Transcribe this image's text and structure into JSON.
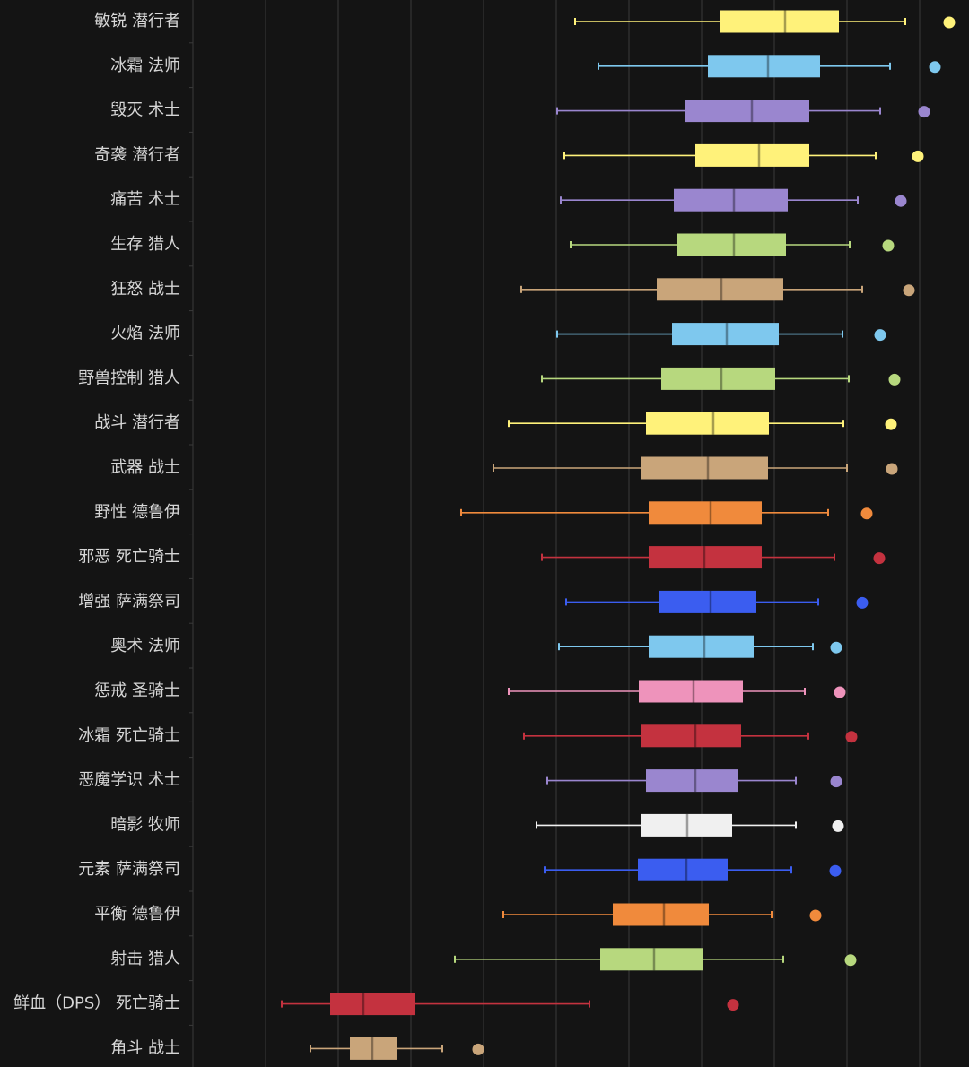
{
  "chart_data": {
    "type": "boxplot",
    "orientation": "horizontal",
    "title": "",
    "xlabel": "",
    "ylabel": "",
    "xlim": [
      0,
      1080
    ],
    "grid": true,
    "gridlines_x": [
      215,
      296,
      377,
      458,
      539,
      620,
      701,
      782,
      863,
      944,
      1025
    ],
    "categories": [
      "敏锐 潜行者",
      "冰霜 法师",
      "毁灭 术士",
      "奇袭 潜行者",
      "痛苦 术士",
      "生存 猎人",
      "狂怒 战士",
      "火焰 法师",
      "野兽控制 猎人",
      "战斗 潜行者",
      "武器 战士",
      "野性 德鲁伊",
      "邪恶 死亡骑士",
      "增强 萨满祭司",
      "奥术 法师",
      "惩戒 圣骑士",
      "冰霜 死亡骑士",
      "恶魔学识 术士",
      "暗影 牧师",
      "元素 萨满祭司",
      "平衡 德鲁伊",
      "射击 猎人",
      "鲜血（DPS） 死亡骑士",
      "角斗 战士"
    ],
    "series": [
      {
        "category": "敏锐 潜行者",
        "whisker_low": 641,
        "q1": 802,
        "median": 875,
        "q3": 935,
        "whisker_high": 1009,
        "outliers": [
          1058
        ],
        "color": "#fff27a"
      },
      {
        "category": "冰霜 法师",
        "whisker_low": 667,
        "q1": 789,
        "median": 856,
        "q3": 914,
        "whisker_high": 992,
        "outliers": [
          1042
        ],
        "color": "#7ec8ee"
      },
      {
        "category": "毁灭 术士",
        "whisker_low": 621,
        "q1": 763,
        "median": 838,
        "q3": 902,
        "whisker_high": 981,
        "outliers": [
          1030
        ],
        "color": "#9a86cf"
      },
      {
        "category": "奇袭 潜行者",
        "whisker_low": 629,
        "q1": 775,
        "median": 846,
        "q3": 902,
        "whisker_high": 976,
        "outliers": [
          1023
        ],
        "color": "#fff27a"
      },
      {
        "category": "痛苦 术士",
        "whisker_low": 625,
        "q1": 751,
        "median": 818,
        "q3": 878,
        "whisker_high": 956,
        "outliers": [
          1004
        ],
        "color": "#9a86cf"
      },
      {
        "category": "生存 猎人",
        "whisker_low": 636,
        "q1": 754,
        "median": 818,
        "q3": 876,
        "whisker_high": 947,
        "outliers": [
          990
        ],
        "color": "#b7d87e"
      },
      {
        "category": "狂怒 战士",
        "whisker_low": 581,
        "q1": 732,
        "median": 804,
        "q3": 873,
        "whisker_high": 961,
        "outliers": [
          1013
        ],
        "color": "#c9a57a"
      },
      {
        "category": "火焰 法师",
        "whisker_low": 621,
        "q1": 749,
        "median": 810,
        "q3": 868,
        "whisker_high": 939,
        "outliers": [
          981
        ],
        "color": "#7ec8ee"
      },
      {
        "category": "野兽控制 猎人",
        "whisker_low": 604,
        "q1": 737,
        "median": 804,
        "q3": 864,
        "whisker_high": 946,
        "outliers": [
          997
        ],
        "color": "#b7d87e"
      },
      {
        "category": "战斗 潜行者",
        "whisker_low": 567,
        "q1": 720,
        "median": 795,
        "q3": 857,
        "whisker_high": 940,
        "outliers": [
          993
        ],
        "color": "#fff27a"
      },
      {
        "category": "武器 战士",
        "whisker_low": 550,
        "q1": 714,
        "median": 789,
        "q3": 856,
        "whisker_high": 944,
        "outliers": [
          994
        ],
        "color": "#c9a57a"
      },
      {
        "category": "野性 德鲁伊",
        "whisker_low": 514,
        "q1": 723,
        "median": 792,
        "q3": 849,
        "whisker_high": 923,
        "outliers": [
          966
        ],
        "color": "#f08a3c"
      },
      {
        "category": "邪恶 死亡骑士",
        "whisker_low": 604,
        "q1": 723,
        "median": 785,
        "q3": 849,
        "whisker_high": 930,
        "outliers": [
          980
        ],
        "color": "#c4323f"
      },
      {
        "category": "增强 萨满祭司",
        "whisker_low": 631,
        "q1": 735,
        "median": 792,
        "q3": 843,
        "whisker_high": 912,
        "outliers": [
          961
        ],
        "color": "#3b5df0"
      },
      {
        "category": "奥术 法师",
        "whisker_low": 623,
        "q1": 723,
        "median": 785,
        "q3": 840,
        "whisker_high": 906,
        "outliers": [
          932
        ],
        "color": "#7ec8ee"
      },
      {
        "category": "惩戒 圣骑士",
        "whisker_low": 567,
        "q1": 712,
        "median": 773,
        "q3": 828,
        "whisker_high": 897,
        "outliers": [
          936
        ],
        "color": "#ee93bb"
      },
      {
        "category": "冰霜 死亡骑士",
        "whisker_low": 584,
        "q1": 714,
        "median": 775,
        "q3": 826,
        "whisker_high": 901,
        "outliers": [
          949
        ],
        "color": "#c4323f"
      },
      {
        "category": "恶魔学识 术士",
        "whisker_low": 610,
        "q1": 720,
        "median": 775,
        "q3": 823,
        "whisker_high": 887,
        "outliers": [
          932
        ],
        "color": "#9a86cf"
      },
      {
        "category": "暗影 牧师",
        "whisker_low": 598,
        "q1": 714,
        "median": 766,
        "q3": 816,
        "whisker_high": 887,
        "outliers": [
          934
        ],
        "color": "#f0f0f0"
      },
      {
        "category": "元素 萨满祭司",
        "whisker_low": 607,
        "q1": 711,
        "median": 765,
        "q3": 811,
        "whisker_high": 882,
        "outliers": [
          931
        ],
        "color": "#3b5df0"
      },
      {
        "category": "平衡 德鲁伊",
        "whisker_low": 561,
        "q1": 683,
        "median": 740,
        "q3": 790,
        "whisker_high": 860,
        "outliers": [
          909
        ],
        "color": "#f08a3c"
      },
      {
        "category": "射击 猎人",
        "whisker_low": 507,
        "q1": 669,
        "median": 729,
        "q3": 783,
        "whisker_high": 873,
        "outliers": [
          948
        ],
        "color": "#b7d87e"
      },
      {
        "category": "鲜血（DPS） 死亡骑士",
        "whisker_low": 314,
        "q1": 368,
        "median": 405,
        "q3": 462,
        "whisker_high": 657,
        "outliers": [
          817
        ],
        "color": "#c4323f"
      },
      {
        "category": "角斗 战士",
        "whisker_low": 346,
        "q1": 390,
        "median": 415,
        "q3": 443,
        "whisker_high": 493,
        "outliers": [
          533
        ],
        "color": "#c9a57a"
      }
    ]
  }
}
